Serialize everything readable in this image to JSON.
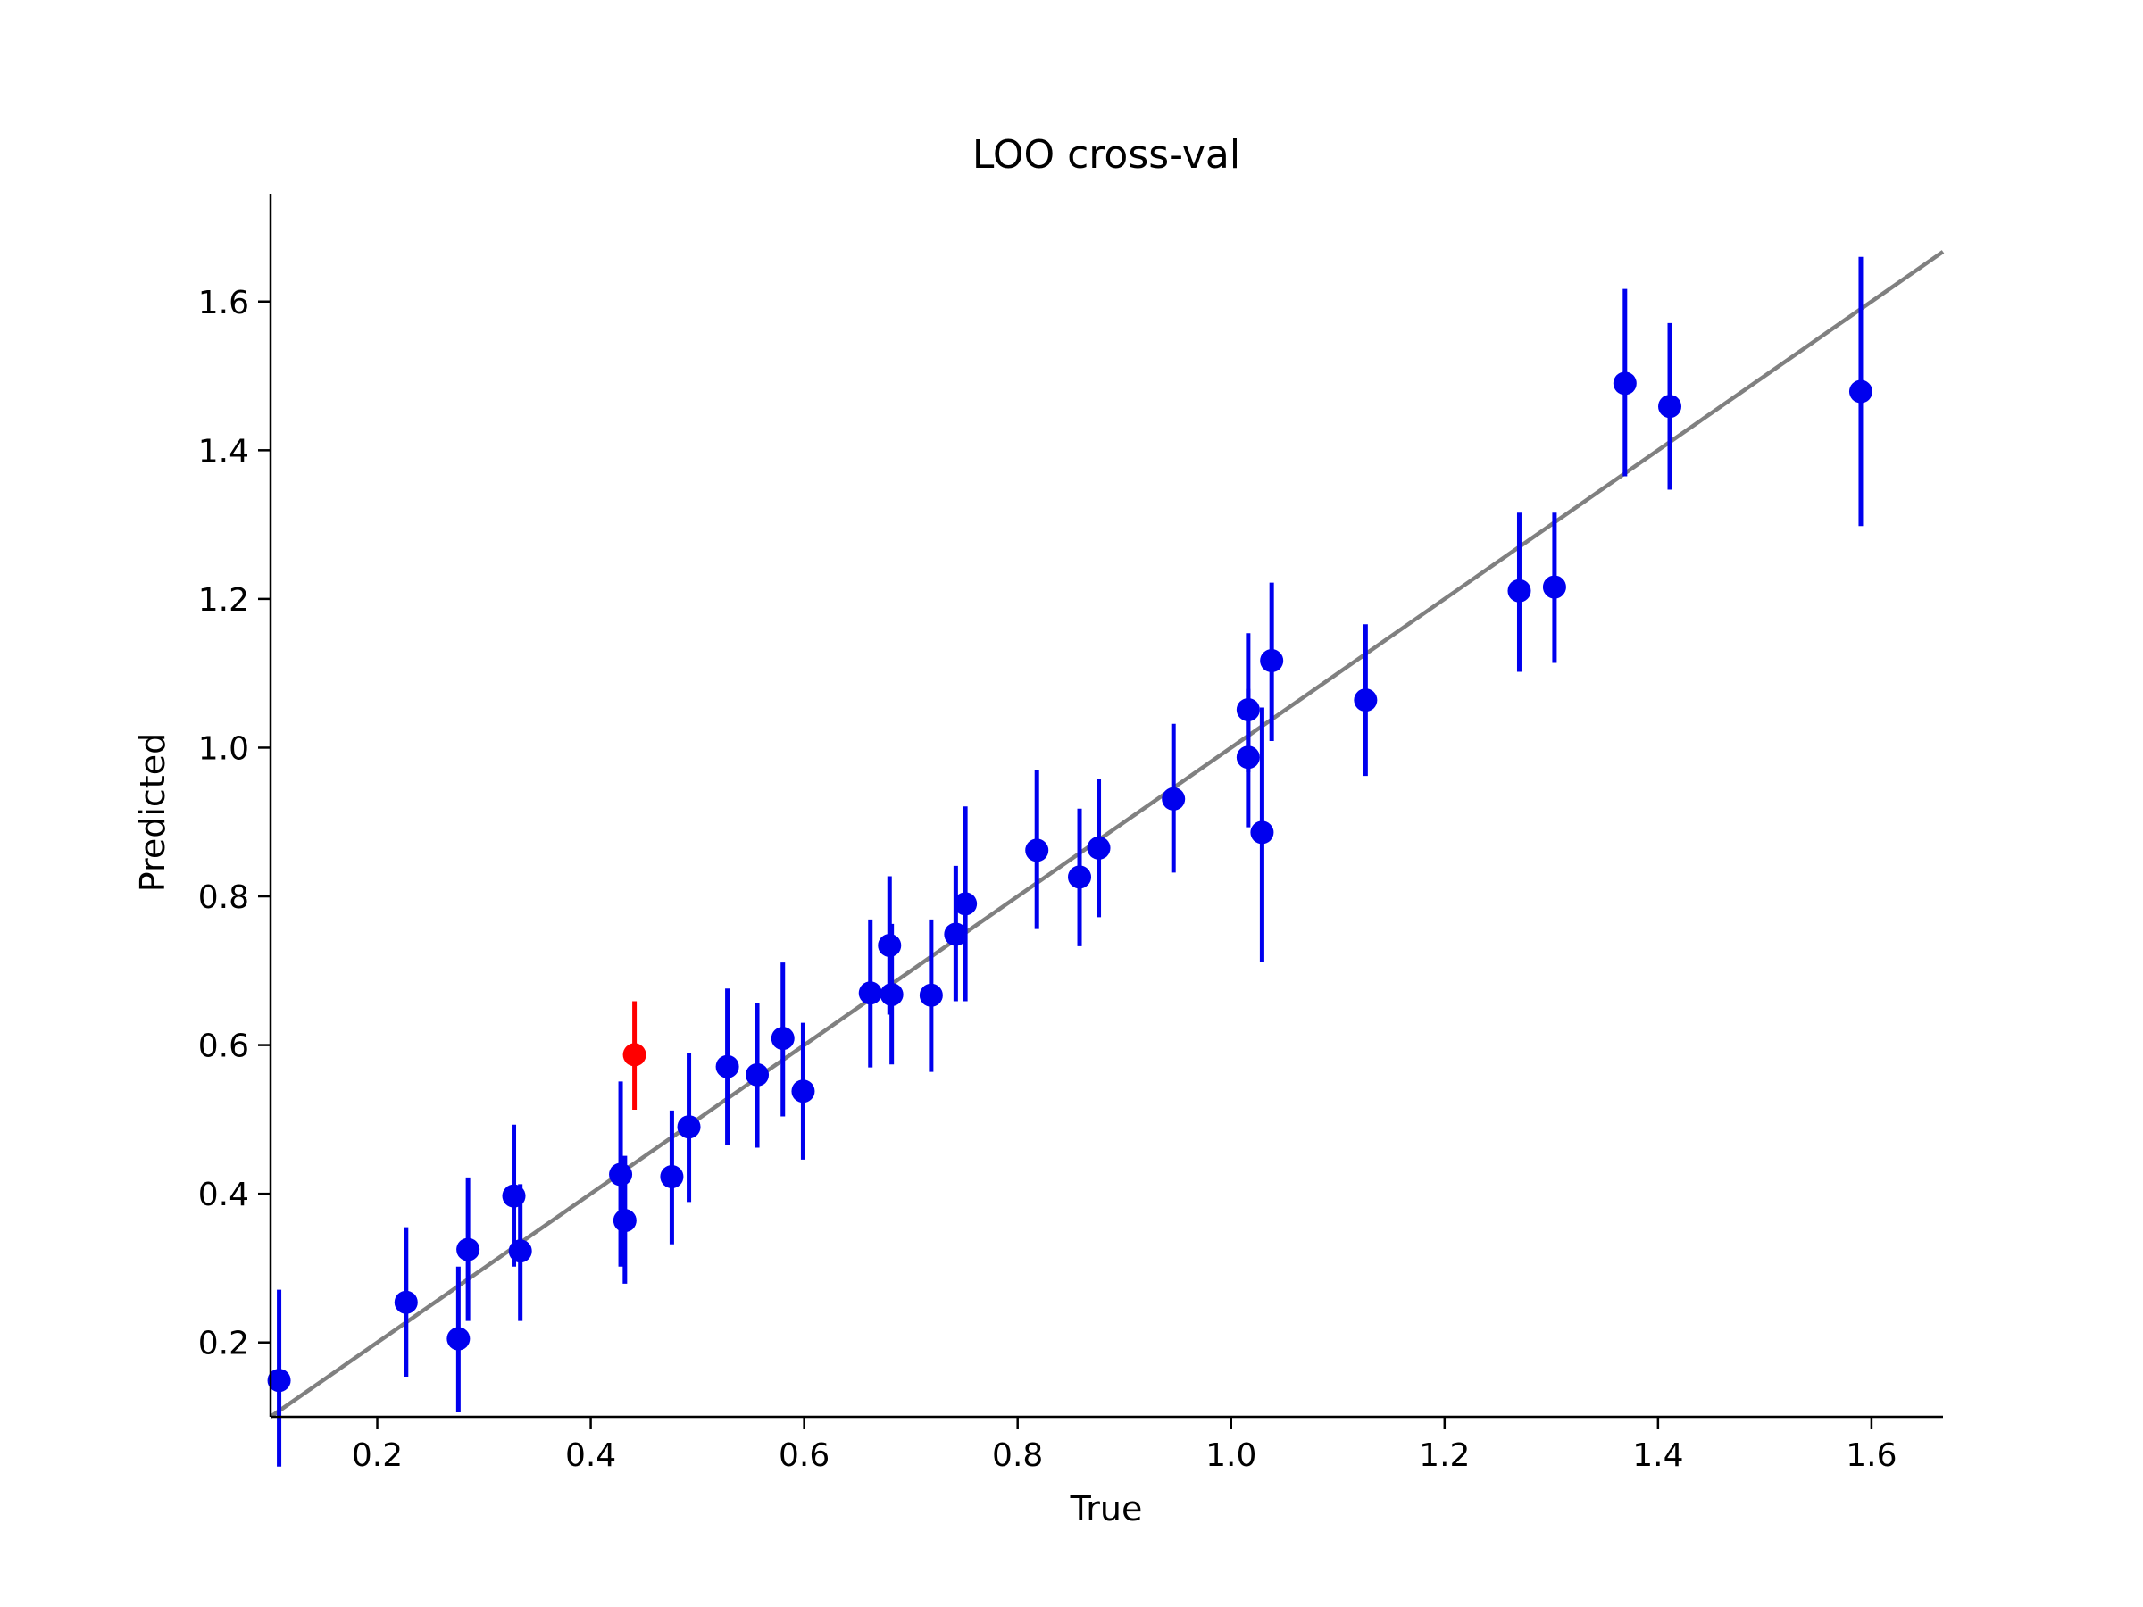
{
  "chart_data": {
    "type": "scatter",
    "title": "LOO cross-val",
    "xlabel": "True",
    "ylabel": "Predicted",
    "xlim": [
      0.1,
      1.667
    ],
    "ylim": [
      0.1,
      1.745
    ],
    "xticks": [
      0.2,
      0.4,
      0.6,
      0.8,
      1.0,
      1.2,
      1.4,
      1.6
    ],
    "yticks": [
      0.2,
      0.4,
      0.6,
      0.8,
      1.0,
      1.2,
      1.4,
      1.6
    ],
    "xtick_labels": [
      "0.2",
      "0.4",
      "0.6",
      "0.8",
      "1.0",
      "1.2",
      "1.4",
      "1.6"
    ],
    "ytick_labels": [
      "0.2",
      "0.4",
      "0.6",
      "0.8",
      "1.0",
      "1.2",
      "1.4",
      "1.6"
    ],
    "grid": false,
    "legend": "none",
    "reference_line": {
      "slope": 1,
      "intercept": 0,
      "color": "#808080"
    },
    "point_color": "#0000ee",
    "highlight_color": "#ff0000",
    "points": [
      {
        "x": 0.108,
        "y": 0.149,
        "ylow": 0.033,
        "yhigh": 0.271
      },
      {
        "x": 0.227,
        "y": 0.254,
        "ylow": 0.154,
        "yhigh": 0.355
      },
      {
        "x": 0.276,
        "y": 0.205,
        "ylow": 0.106,
        "yhigh": 0.302
      },
      {
        "x": 0.285,
        "y": 0.325,
        "ylow": 0.229,
        "yhigh": 0.422
      },
      {
        "x": 0.328,
        "y": 0.397,
        "ylow": 0.302,
        "yhigh": 0.493
      },
      {
        "x": 0.334,
        "y": 0.323,
        "ylow": 0.229,
        "yhigh": 0.413
      },
      {
        "x": 0.428,
        "y": 0.426,
        "ylow": 0.302,
        "yhigh": 0.551
      },
      {
        "x": 0.432,
        "y": 0.364,
        "ylow": 0.279,
        "yhigh": 0.451
      },
      {
        "x": 0.441,
        "y": 0.587,
        "ylow": 0.513,
        "yhigh": 0.659,
        "highlight": true
      },
      {
        "x": 0.476,
        "y": 0.423,
        "ylow": 0.332,
        "yhigh": 0.512
      },
      {
        "x": 0.492,
        "y": 0.49,
        "ylow": 0.389,
        "yhigh": 0.589
      },
      {
        "x": 0.528,
        "y": 0.571,
        "ylow": 0.465,
        "yhigh": 0.676
      },
      {
        "x": 0.556,
        "y": 0.56,
        "ylow": 0.462,
        "yhigh": 0.657
      },
      {
        "x": 0.58,
        "y": 0.609,
        "ylow": 0.504,
        "yhigh": 0.711
      },
      {
        "x": 0.599,
        "y": 0.538,
        "ylow": 0.446,
        "yhigh": 0.63
      },
      {
        "x": 0.662,
        "y": 0.67,
        "ylow": 0.57,
        "yhigh": 0.769
      },
      {
        "x": 0.68,
        "y": 0.734,
        "ylow": 0.641,
        "yhigh": 0.827
      },
      {
        "x": 0.682,
        "y": 0.668,
        "ylow": 0.574,
        "yhigh": 0.763
      },
      {
        "x": 0.719,
        "y": 0.667,
        "ylow": 0.564,
        "yhigh": 0.769
      },
      {
        "x": 0.742,
        "y": 0.749,
        "ylow": 0.659,
        "yhigh": 0.841
      },
      {
        "x": 0.751,
        "y": 0.79,
        "ylow": 0.659,
        "yhigh": 0.921
      },
      {
        "x": 0.818,
        "y": 0.862,
        "ylow": 0.756,
        "yhigh": 0.97
      },
      {
        "x": 0.858,
        "y": 0.826,
        "ylow": 0.733,
        "yhigh": 0.918
      },
      {
        "x": 0.876,
        "y": 0.865,
        "ylow": 0.772,
        "yhigh": 0.958
      },
      {
        "x": 0.946,
        "y": 0.931,
        "ylow": 0.832,
        "yhigh": 1.032
      },
      {
        "x": 1.016,
        "y": 1.051,
        "ylow": 0.967,
        "yhigh": 1.154
      },
      {
        "x": 1.016,
        "y": 0.987,
        "ylow": 0.893,
        "yhigh": 1.079
      },
      {
        "x": 1.029,
        "y": 0.886,
        "ylow": 0.712,
        "yhigh": 1.054
      },
      {
        "x": 1.038,
        "y": 1.117,
        "ylow": 1.009,
        "yhigh": 1.222
      },
      {
        "x": 1.126,
        "y": 1.064,
        "ylow": 0.962,
        "yhigh": 1.166
      },
      {
        "x": 1.27,
        "y": 1.211,
        "ylow": 1.102,
        "yhigh": 1.316
      },
      {
        "x": 1.303,
        "y": 1.216,
        "ylow": 1.114,
        "yhigh": 1.316
      },
      {
        "x": 1.369,
        "y": 1.49,
        "ylow": 1.365,
        "yhigh": 1.617
      },
      {
        "x": 1.411,
        "y": 1.459,
        "ylow": 1.347,
        "yhigh": 1.571
      },
      {
        "x": 1.59,
        "y": 1.479,
        "ylow": 1.298,
        "yhigh": 1.66
      }
    ]
  }
}
